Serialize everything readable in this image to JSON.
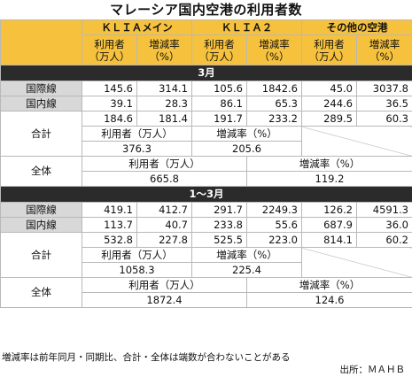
{
  "title": "マレーシア国内空港の利用者数",
  "headers": {
    "klia_main": "ＫＬＩＡメイン",
    "klia2": "ＫＬＩＡ２",
    "other": "その他の空港",
    "users": "利用者\n（万人）",
    "change": "増減率\n（%）"
  },
  "march": {
    "band": "3月",
    "intl": {
      "label": "国際線",
      "values": [
        "145.6",
        "314.1",
        "105.6",
        "1842.6",
        "45.0",
        "3037.8"
      ]
    },
    "dom": {
      "label": "国内線",
      "values": [
        "39.1",
        "28.3",
        "86.1",
        "65.3",
        "244.6",
        "36.5"
      ]
    },
    "total": {
      "label": "合計",
      "values": [
        "184.6",
        "181.4",
        "191.7",
        "233.2",
        "289.5",
        "60.3"
      ],
      "sub_users_label": "利用者（万人）",
      "sub_change_label": "増減率（%）",
      "sub_users": "376.3",
      "sub_change": "205.6"
    },
    "overall": {
      "label": "全体",
      "users_label": "利用者（万人）",
      "change_label": "増減率（%）",
      "users": "665.8",
      "change": "119.2"
    }
  },
  "jan_mar": {
    "band": "1～3月",
    "intl": {
      "label": "国際線",
      "values": [
        "419.1",
        "412.7",
        "291.7",
        "2249.3",
        "126.2",
        "4591.3"
      ]
    },
    "dom": {
      "label": "国内線",
      "values": [
        "113.7",
        "40.7",
        "233.8",
        "55.6",
        "687.9",
        "36.0"
      ]
    },
    "total": {
      "label": "合計",
      "values": [
        "532.8",
        "227.8",
        "525.5",
        "223.0",
        "814.1",
        "60.2"
      ],
      "sub_users_label": "利用者（万人）",
      "sub_change_label": "増減率（%）",
      "sub_users": "1058.3",
      "sub_change": "225.4"
    },
    "overall": {
      "label": "全体",
      "users_label": "利用者（万人）",
      "change_label": "増減率（%）",
      "users": "1872.4",
      "change": "124.6"
    }
  },
  "footnote": "増減率は前年同月・同期比、合計・全体は端数が合わないことがある",
  "source": "出所：ＭＡＨＢ",
  "colors": {
    "header": "#f6c23e",
    "band": "#2b2b2b",
    "row_label": "#d8d8d8"
  }
}
